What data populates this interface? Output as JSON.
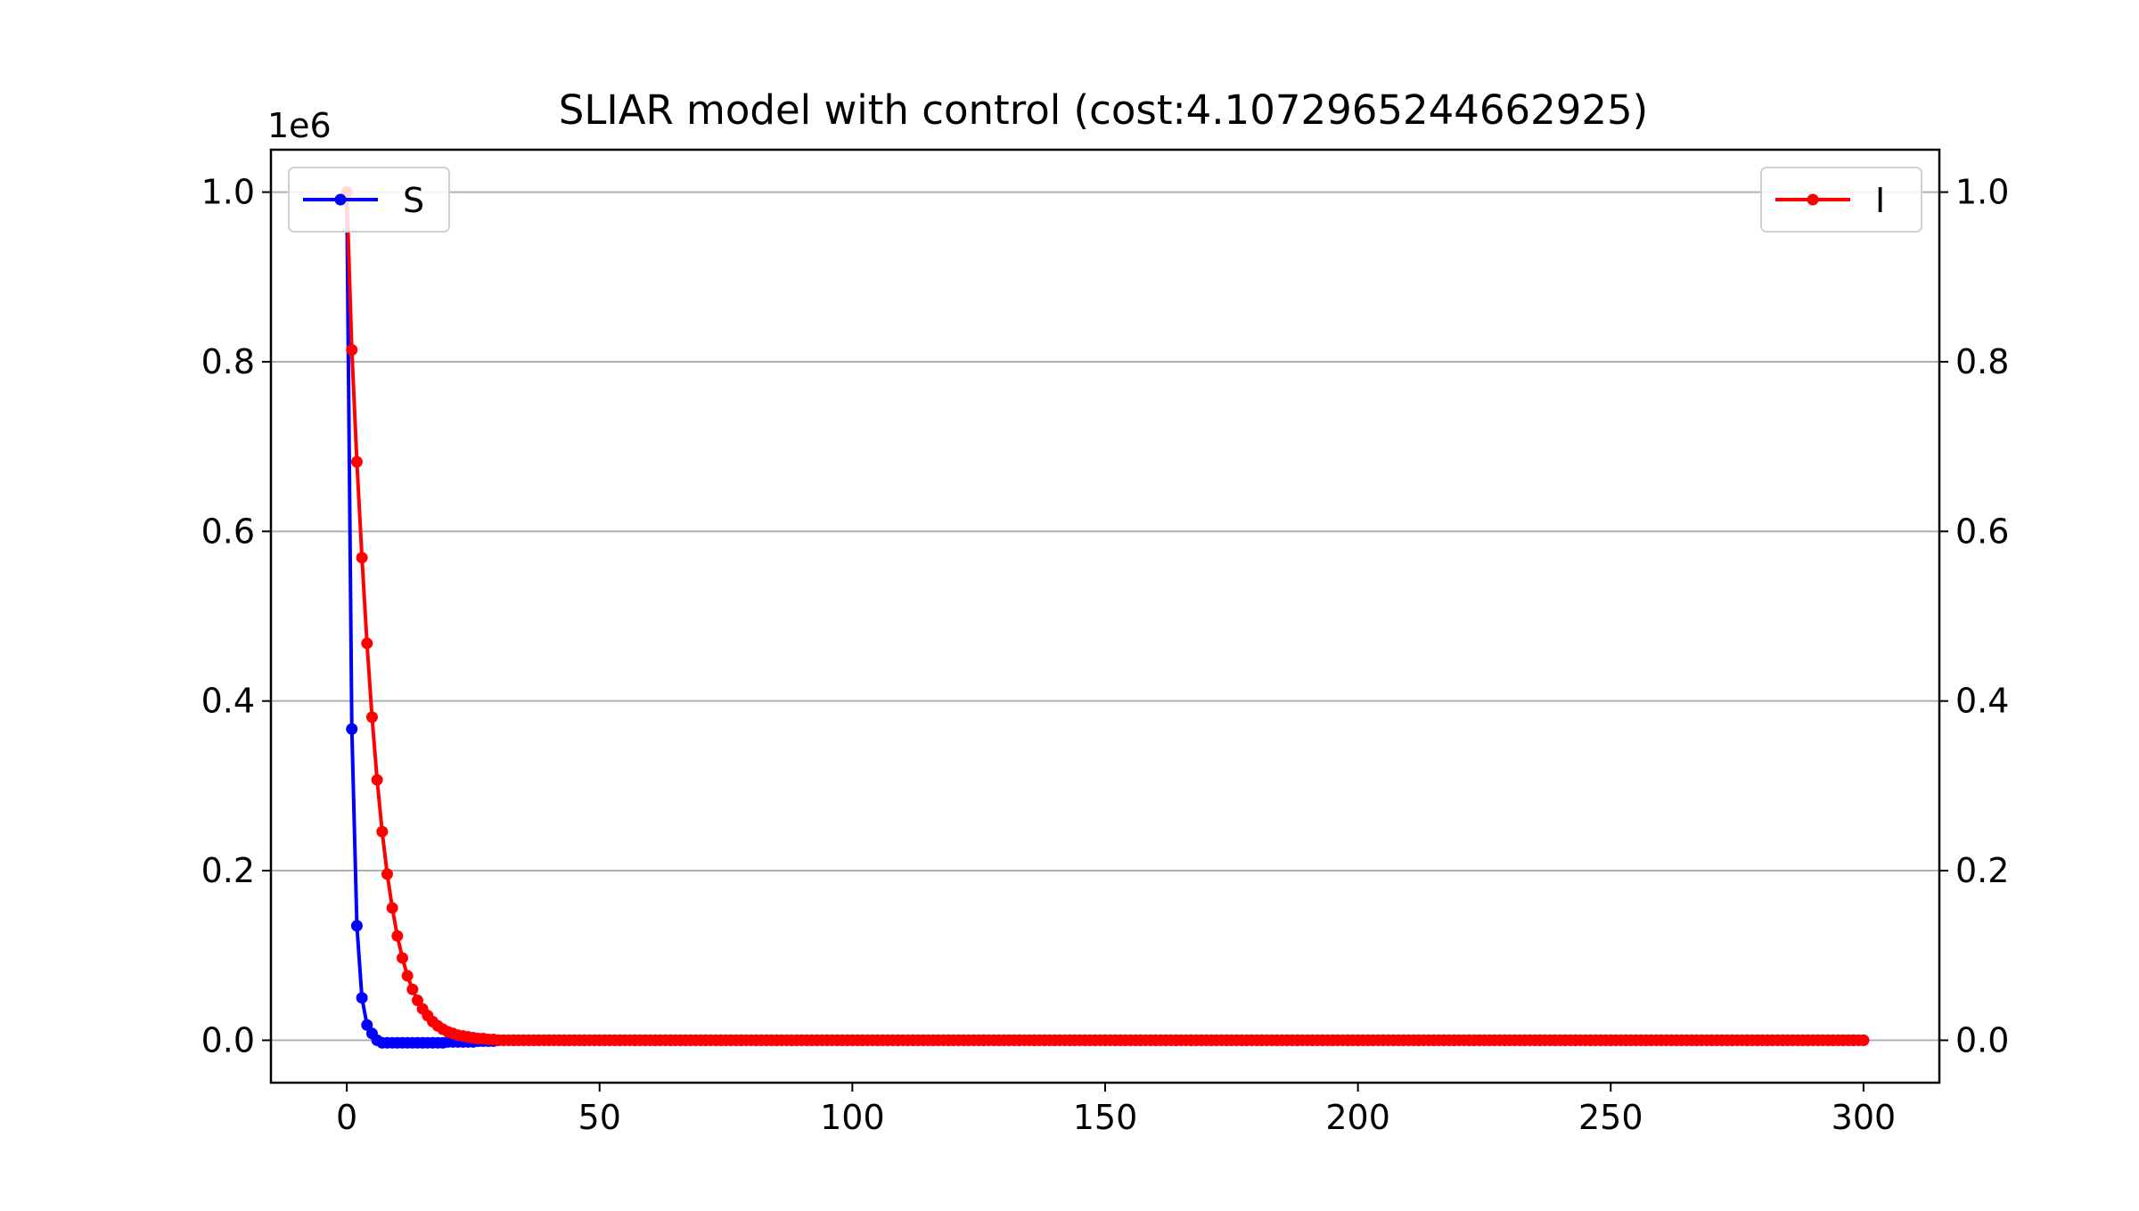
{
  "chart_data": {
    "type": "line",
    "title": "SLIAR model with control (cost:4.1072965244662925)",
    "xlabel": "",
    "ylabel": "",
    "xlim": [
      -15,
      315
    ],
    "ylim": [
      -0.05,
      1.05
    ],
    "y_multiplier_label": "1e6",
    "x_ticks": [
      "0",
      "50",
      "100",
      "150",
      "200",
      "250",
      "300"
    ],
    "x_tick_values": [
      0,
      50,
      100,
      150,
      200,
      250,
      300
    ],
    "y_ticks_left": [
      "0.0",
      "0.2",
      "0.4",
      "0.6",
      "0.8",
      "1.0"
    ],
    "y_ticks_right": [
      "0.0",
      "0.2",
      "0.4",
      "0.6",
      "0.8",
      "1.0"
    ],
    "y_tick_values": [
      0.0,
      0.2,
      0.4,
      0.6,
      0.8,
      1.0
    ],
    "grid": "horizontal",
    "x_step": 1,
    "x_end": 300,
    "series": [
      {
        "name": "S",
        "axis": "left",
        "color": "#0000ff",
        "legend_position": "upper-left",
        "values_head": [
          1.0,
          0.367,
          0.135,
          0.05,
          0.018,
          0.008,
          0.0,
          -0.003,
          -0.003,
          -0.003,
          -0.003,
          -0.003,
          -0.003,
          -0.003,
          -0.003,
          -0.003,
          -0.003,
          -0.003,
          -0.003,
          -0.003,
          -0.002,
          -0.002,
          -0.002,
          -0.002,
          -0.002,
          -0.002,
          -0.001,
          -0.001,
          -0.001,
          -0.001,
          0.0
        ],
        "tail_value": 0.0
      },
      {
        "name": "I",
        "axis": "right",
        "color": "#ff0000",
        "legend_position": "upper-right",
        "values_head": [
          1.0,
          0.814,
          0.682,
          0.569,
          0.468,
          0.381,
          0.307,
          0.246,
          0.196,
          0.156,
          0.123,
          0.097,
          0.076,
          0.06,
          0.047,
          0.037,
          0.029,
          0.022,
          0.017,
          0.013,
          0.01,
          0.008,
          0.006,
          0.005,
          0.004,
          0.003,
          0.002,
          0.002,
          0.001,
          0.001,
          0.0
        ],
        "tail_value": 0.0
      }
    ]
  }
}
